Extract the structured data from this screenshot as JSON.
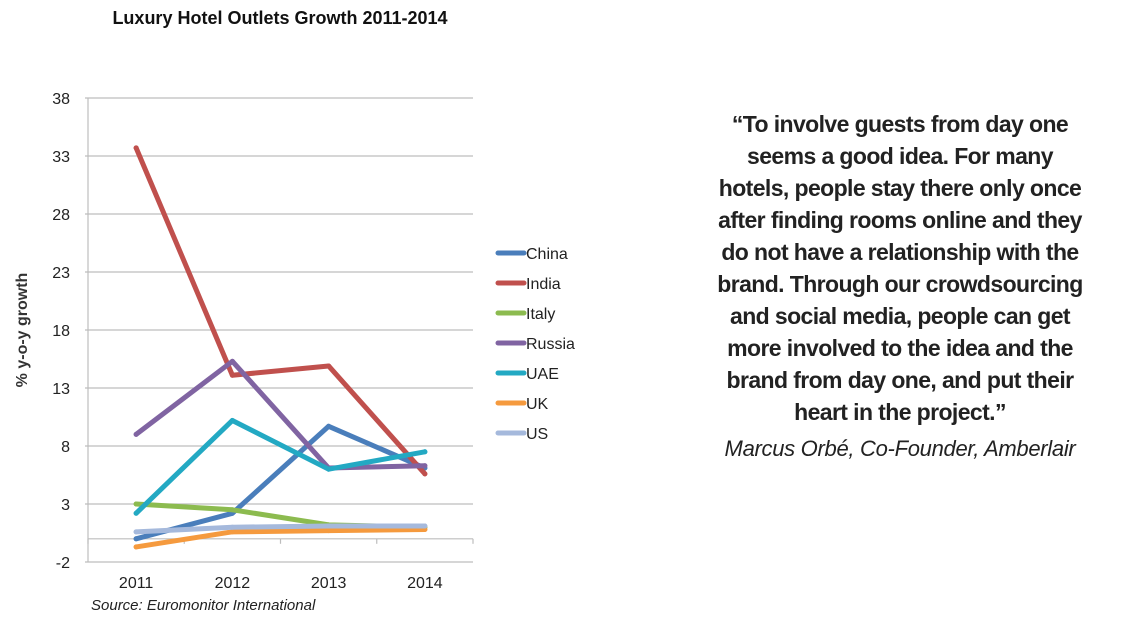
{
  "chart_data": {
    "type": "line",
    "title": "Luxury Hotel Outlets Growth 2011-2014",
    "xlabel": "",
    "ylabel": "% y-o-y growth",
    "categories": [
      "2011",
      "2012",
      "2013",
      "2014"
    ],
    "ylim": [
      -2,
      38
    ],
    "yticks": [
      "38",
      "33",
      "28",
      "23",
      "18",
      "13",
      "8",
      "3",
      "-2"
    ],
    "grid": true,
    "legend_position": "right",
    "series": [
      {
        "name": "China",
        "color": "#4a7ebb",
        "values": [
          0.0,
          2.2,
          9.7,
          6.1
        ]
      },
      {
        "name": "India",
        "color": "#c0504d",
        "values": [
          33.7,
          14.1,
          14.9,
          5.6
        ]
      },
      {
        "name": "Italy",
        "color": "#8cbb4f",
        "values": [
          3.0,
          2.5,
          1.2,
          1.0
        ]
      },
      {
        "name": "Russia",
        "color": "#8064a2",
        "values": [
          9.0,
          15.3,
          6.1,
          6.3
        ]
      },
      {
        "name": "UAE",
        "color": "#23a9c3",
        "values": [
          2.2,
          10.2,
          6.0,
          7.5
        ]
      },
      {
        "name": "UK",
        "color": "#f59a3e",
        "values": [
          -0.7,
          0.6,
          0.7,
          0.8
        ]
      },
      {
        "name": "US",
        "color": "#a5b9dc",
        "values": [
          0.6,
          1.0,
          1.1,
          1.1
        ]
      }
    ],
    "source": "Source: Euromonitor International"
  },
  "quote": {
    "lines": [
      "“To involve guests from day one",
      "seems a good idea.  For many",
      "hotels, people stay there only once",
      "after finding rooms online and they",
      "do not have a relationship with the",
      "brand. Through our crowdsourcing",
      "and social media, people can get",
      "more involved to the idea and the",
      "brand from day one, and put their",
      "heart in the project.”"
    ],
    "author": "Marcus Orbé, Co-Founder, Amberlair"
  }
}
